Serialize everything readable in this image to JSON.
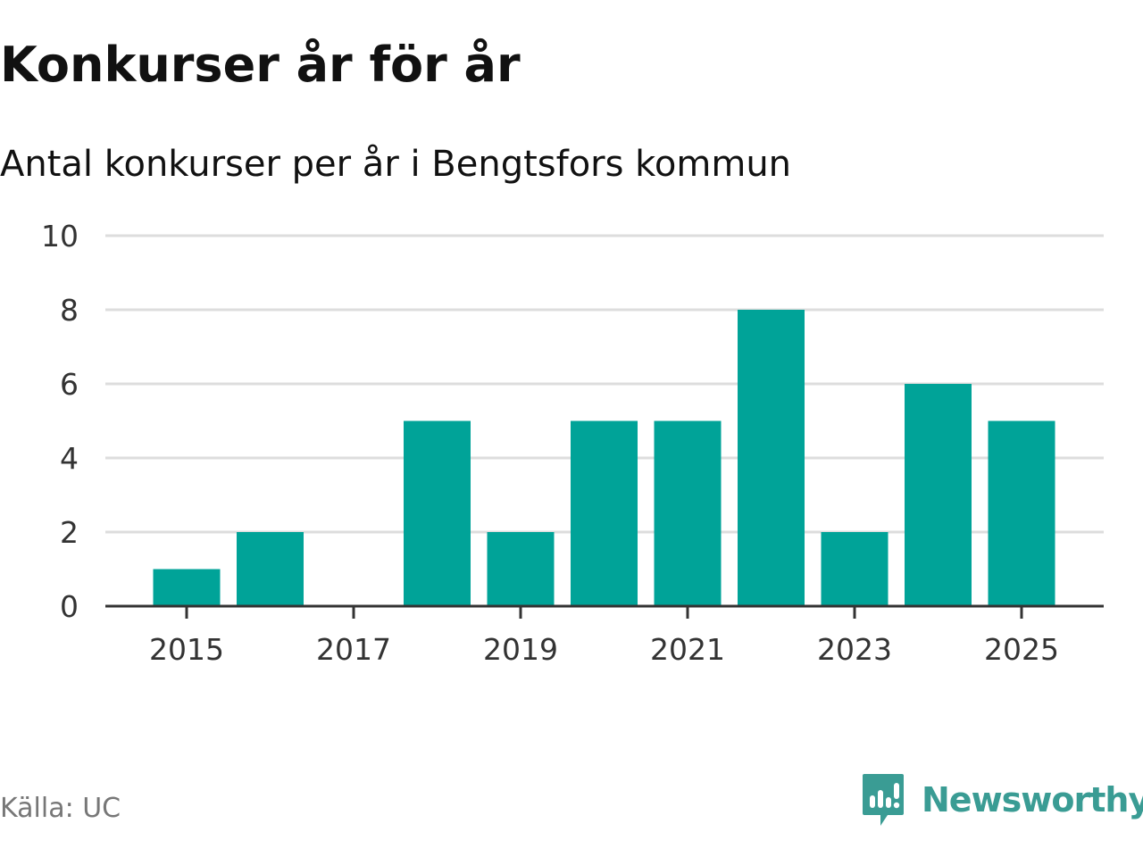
{
  "header": {
    "title": "Konkurser år för år",
    "subtitle": "Antal konkurser per år i Bengtsfors kommun"
  },
  "footer": {
    "source": "Källa: UC",
    "brand": "Newsworthy",
    "brand_icon": "newsworthy-logo-icon"
  },
  "colors": {
    "bar": "#00a398",
    "grid": "#dddddd",
    "axis": "#333333",
    "brand": "#3a9c94"
  },
  "chart_data": {
    "type": "bar",
    "title": "Konkurser år för år",
    "subtitle": "Antal konkurser per år i Bengtsfors kommun",
    "xlabel": "",
    "ylabel": "",
    "categories": [
      2015,
      2016,
      2017,
      2018,
      2019,
      2020,
      2021,
      2022,
      2023,
      2024,
      2025
    ],
    "values": [
      1,
      2,
      0,
      5,
      2,
      5,
      5,
      8,
      2,
      6,
      5
    ],
    "ylim": [
      0,
      10
    ],
    "yticks": [
      0,
      2,
      4,
      6,
      8,
      10
    ],
    "xticks": [
      2015,
      2017,
      2019,
      2021,
      2023,
      2025
    ],
    "grid": true,
    "legend": "none"
  }
}
